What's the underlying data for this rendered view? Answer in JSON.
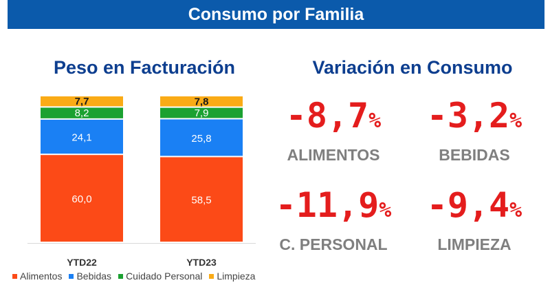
{
  "header": {
    "title": "Consumo por Familia"
  },
  "left_panel": {
    "title": "Peso en Facturación"
  },
  "right_panel": {
    "title": "Variación en Consumo",
    "metrics": [
      {
        "value": "-8,7",
        "unit": "%",
        "label": "ALIMENTOS"
      },
      {
        "value": "-3,2",
        "unit": "%",
        "label": "BEBIDAS"
      },
      {
        "value": "-11,9",
        "unit": "%",
        "label": "C. PERSONAL"
      },
      {
        "value": "-9,4",
        "unit": "%",
        "label": "LIMPIEZA"
      }
    ]
  },
  "chart_data": {
    "type": "bar",
    "stacked": true,
    "title": "Peso en Facturación",
    "categories": [
      "YTD22",
      "YTD23"
    ],
    "series": [
      {
        "name": "Alimentos",
        "color": "#fc4a17",
        "values": [
          60.0,
          58.5
        ],
        "labels": [
          "60,0",
          "58,5"
        ]
      },
      {
        "name": "Bebidas",
        "color": "#1a80f4",
        "values": [
          24.1,
          25.8
        ],
        "labels": [
          "24,1",
          "25,8"
        ]
      },
      {
        "name": "Cuidado Personal",
        "color": "#1ba131",
        "values": [
          8.2,
          7.9
        ],
        "labels": [
          "8,2",
          "7,9"
        ]
      },
      {
        "name": "Limpieza",
        "color": "#faab16",
        "values": [
          7.7,
          7.8
        ],
        "labels": [
          "7,7",
          "7,8"
        ]
      }
    ],
    "ylim": [
      0,
      100
    ],
    "legend": "bottom"
  }
}
